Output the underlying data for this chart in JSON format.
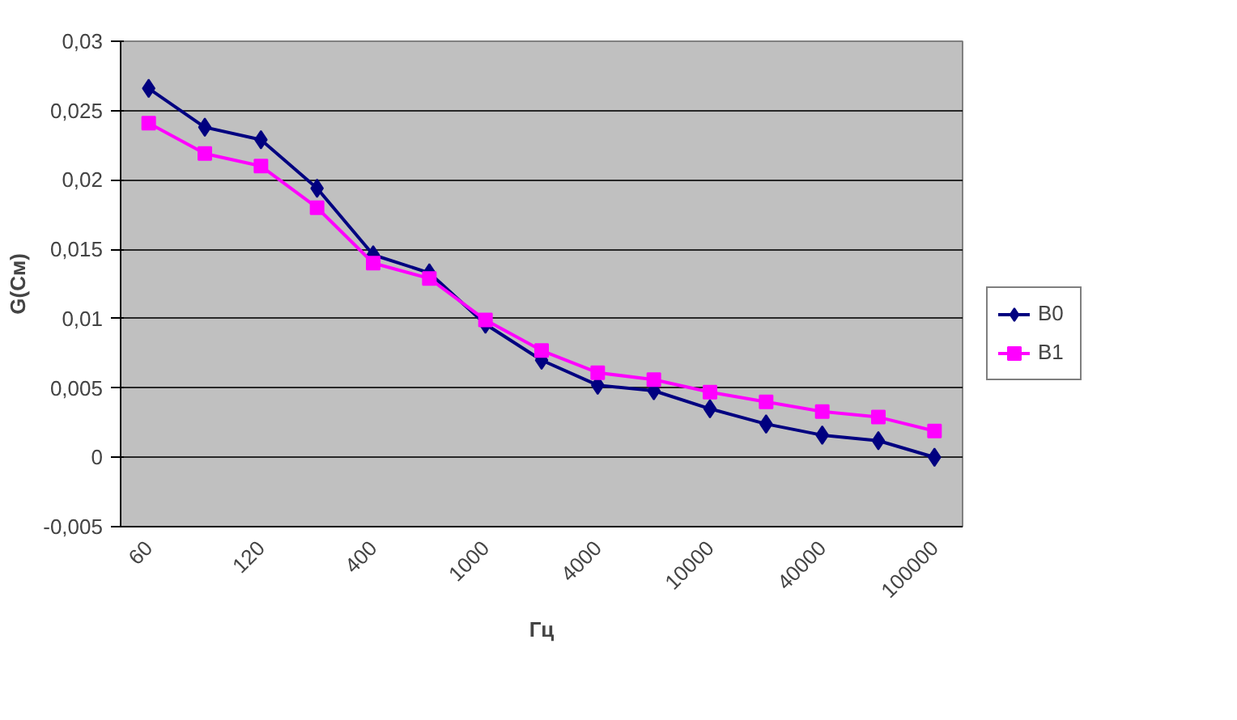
{
  "chart_data": {
    "type": "line",
    "xlabel": "Гц",
    "ylabel": "G(См)",
    "categories": [
      "60",
      null,
      "120",
      null,
      "400",
      null,
      "1000",
      null,
      "4000",
      null,
      "10000",
      null,
      "40000",
      null,
      "100000"
    ],
    "series": [
      {
        "name": "B0",
        "color": "#000080",
        "marker": "diamond",
        "values": [
          0.0266,
          0.0238,
          0.0229,
          0.0194,
          0.0146,
          0.0133,
          0.0096,
          0.007,
          0.0052,
          0.0048,
          0.0035,
          0.0024,
          0.0016,
          0.0012,
          0.0
        ]
      },
      {
        "name": "B1",
        "color": "#ff00ff",
        "marker": "square",
        "values": [
          0.0241,
          0.0219,
          0.021,
          0.018,
          0.014,
          0.0129,
          0.0099,
          0.0077,
          0.0061,
          0.0056,
          0.0047,
          0.004,
          0.0033,
          0.0029,
          0.0019
        ]
      }
    ],
    "ylim": [
      -0.005,
      0.03
    ],
    "yticks": [
      {
        "value": -0.005,
        "label": "-0,005"
      },
      {
        "value": 0,
        "label": "0"
      },
      {
        "value": 0.005,
        "label": "0,005"
      },
      {
        "value": 0.01,
        "label": "0,01"
      },
      {
        "value": 0.015,
        "label": "0,015"
      },
      {
        "value": 0.02,
        "label": "0,02"
      },
      {
        "value": 0.025,
        "label": "0,025"
      },
      {
        "value": 0.03,
        "label": "0,03"
      }
    ],
    "grid": "y",
    "legend": "right",
    "line_style": "solid"
  }
}
